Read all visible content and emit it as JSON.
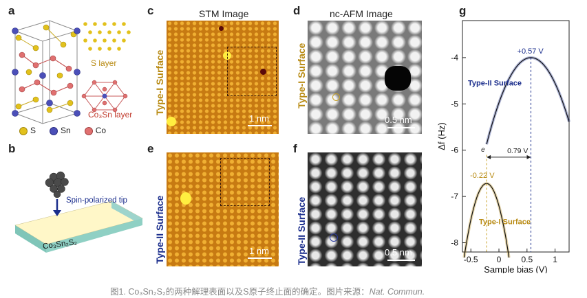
{
  "panels": {
    "a": {
      "label": "a",
      "s_layer": "S layer",
      "co3sn_layer": "Co₃Sn layer",
      "legend": [
        {
          "name": "S",
          "color": "#e2c11c"
        },
        {
          "name": "Sn",
          "color": "#4b4fb8"
        },
        {
          "name": "Co",
          "color": "#d9534f"
        }
      ]
    },
    "b": {
      "label": "b",
      "tip": "Spin-polarized tip",
      "substrate": "Co₃Sn₂S₂"
    },
    "c": {
      "label": "c",
      "title": "STM Image",
      "side": "Type-I Surface",
      "scale": "1 nm"
    },
    "d": {
      "label": "d",
      "title": "nc-AFM Image",
      "side": "Type-I Surface",
      "scale": "0.5 nm"
    },
    "e": {
      "label": "e",
      "side": "Type-II Surface",
      "scale": "1 nm"
    },
    "f": {
      "label": "f",
      "side": "Type-II Surface",
      "scale": "0.5 nm"
    },
    "g": {
      "label": "g"
    }
  },
  "caption": {
    "text": "图1. Co₃Sn₂S₂的两种解理表面以及S原子终止面的确定。图片来源：",
    "source": "Nat. Commun."
  },
  "chart_data": {
    "type": "line",
    "xlabel": "Sample bias (V)",
    "ylabel": "Δf (Hz)",
    "xlim": [
      -0.65,
      1.25
    ],
    "ylim": [
      -8.2,
      -3.2
    ],
    "xticks": [
      "-0.5",
      "0",
      "0.5",
      "1"
    ],
    "yticks": [
      "-4",
      "-5",
      "-6",
      "-7",
      "-8"
    ],
    "series": [
      {
        "name": "Type-II Surface",
        "color": "#1a2d8c",
        "vertex": [
          0.57,
          -4.0
        ],
        "curv": -3.0,
        "x_range": [
          -0.22,
          1.25
        ]
      },
      {
        "name": "Type-I Surface",
        "color": "#b88a12",
        "vertex": [
          -0.22,
          -6.72
        ],
        "curv": -10.0,
        "x_range": [
          -0.62,
          0.18
        ]
      }
    ],
    "annotations": {
      "peak_II": "+0.57 V",
      "peak_I": "-0.22 V",
      "delta": "0.79 V",
      "delta_symbol": "e"
    }
  }
}
